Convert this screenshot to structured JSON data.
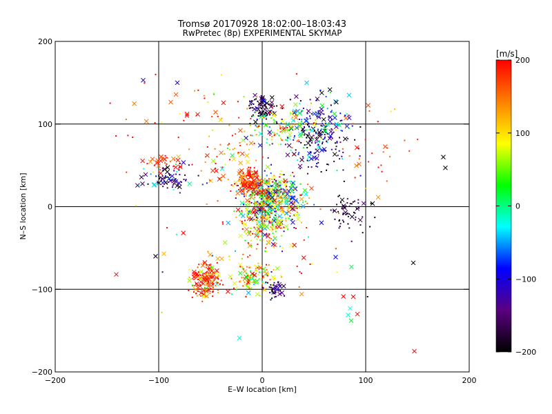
{
  "chart_data": {
    "type": "scatter",
    "title": "Tromsø 20170928 18:02:00–18:03:43",
    "subtitle": "RwPretec (8p) EXPERIMENTAL SKYMAP",
    "xlabel": "E–W location [km]",
    "ylabel": "N–S location [km]",
    "xlim": [
      -200,
      200
    ],
    "ylim": [
      -200,
      200
    ],
    "xticks": [
      -200,
      -100,
      0,
      100,
      200
    ],
    "yticks": [
      -200,
      -100,
      0,
      100,
      200
    ],
    "grid": true,
    "colorbar": {
      "label": "[m/s]",
      "min": -200,
      "max": 200,
      "ticks": [
        200,
        100,
        0,
        -100,
        -200
      ],
      "colors": [
        "#000000",
        "#5a0080",
        "#0000ff",
        "#00ffff",
        "#00ff00",
        "#ffff00",
        "#ff8000",
        "#ff0000"
      ]
    },
    "markers": [
      "dot",
      "x"
    ],
    "clusters": [
      {
        "x": 10,
        "y": 10,
        "sx": 14,
        "sy": 16,
        "n": 520,
        "v": 40,
        "vs": 110
      },
      {
        "x": -12,
        "y": 30,
        "sx": 7,
        "sy": 7,
        "n": 150,
        "v": 175,
        "vs": 40
      },
      {
        "x": 55,
        "y": 88,
        "sx": 16,
        "sy": 20,
        "n": 240,
        "v": -130,
        "vs": 80
      },
      {
        "x": 0,
        "y": 120,
        "sx": 6,
        "sy": 8,
        "n": 90,
        "v": -180,
        "vs": 40
      },
      {
        "x": 20,
        "y": 95,
        "sx": 20,
        "sy": 12,
        "n": 110,
        "v": 60,
        "vs": 90
      },
      {
        "x": -54,
        "y": -88,
        "sx": 8,
        "sy": 12,
        "n": 170,
        "v": 170,
        "vs": 60
      },
      {
        "x": -8,
        "y": -85,
        "sx": 10,
        "sy": 10,
        "n": 110,
        "v": 100,
        "vs": 70
      },
      {
        "x": 12,
        "y": -100,
        "sx": 5,
        "sy": 5,
        "n": 40,
        "v": -170,
        "vs": 40
      },
      {
        "x": -90,
        "y": 35,
        "sx": 14,
        "sy": 8,
        "n": 80,
        "v": -150,
        "vs": 80
      },
      {
        "x": -95,
        "y": 55,
        "sx": 10,
        "sy": 6,
        "n": 30,
        "v": 180,
        "vs": 30
      },
      {
        "x": 0,
        "y": -25,
        "sx": 12,
        "sy": 12,
        "n": 130,
        "v": 120,
        "vs": 100
      },
      {
        "x": 85,
        "y": -10,
        "sx": 10,
        "sy": 14,
        "n": 60,
        "v": -180,
        "vs": 30
      },
      {
        "x": -30,
        "y": 55,
        "sx": 15,
        "sy": 20,
        "n": 60,
        "v": 150,
        "vs": 80
      },
      {
        "x": -60,
        "y": 110,
        "sx": 60,
        "sy": 25,
        "n": 60,
        "v": 170,
        "vs": 60
      },
      {
        "x": 110,
        "y": 70,
        "sx": 15,
        "sy": 30,
        "n": 30,
        "v": 180,
        "vs": 30
      },
      {
        "x": 0,
        "y": -60,
        "sx": 50,
        "sy": 30,
        "n": 50,
        "v": 100,
        "vs": 120
      }
    ],
    "points": [
      {
        "x": 175,
        "y": 60,
        "v": -200,
        "m": "x"
      },
      {
        "x": 177,
        "y": 47,
        "v": -200,
        "m": "x"
      },
      {
        "x": 146,
        "y": -68,
        "v": -200,
        "m": "x"
      },
      {
        "x": 147,
        "y": -175,
        "v": 200,
        "m": "x"
      },
      {
        "x": -115,
        "y": 153,
        "v": -110,
        "m": "x"
      },
      {
        "x": -82,
        "y": 150,
        "v": -110,
        "m": "x"
      },
      {
        "x": -103,
        "y": -60,
        "v": -200,
        "m": "x"
      },
      {
        "x": -95,
        "y": -57,
        "v": 120,
        "m": "x"
      },
      {
        "x": -141,
        "y": -82,
        "v": 200,
        "m": "x"
      },
      {
        "x": 85,
        "y": -123,
        "v": -20,
        "m": "x"
      },
      {
        "x": 83,
        "y": -131,
        "v": -20,
        "m": "x"
      },
      {
        "x": 92,
        "y": -130,
        "v": 200,
        "m": "x"
      },
      {
        "x": 88,
        "y": -109,
        "v": 200,
        "m": "x"
      },
      {
        "x": 86,
        "y": -138,
        "v": 20,
        "m": "x"
      },
      {
        "x": -22,
        "y": -159,
        "v": -20,
        "m": "x"
      },
      {
        "x": 43,
        "y": 150,
        "v": -40,
        "m": "x"
      },
      {
        "x": 84,
        "y": 135,
        "v": -40,
        "m": "x"
      },
      {
        "x": 128,
        "y": 118,
        "v": 110,
        "m": "dot"
      },
      {
        "x": -103,
        "y": 160,
        "v": 200,
        "m": "dot"
      }
    ]
  }
}
